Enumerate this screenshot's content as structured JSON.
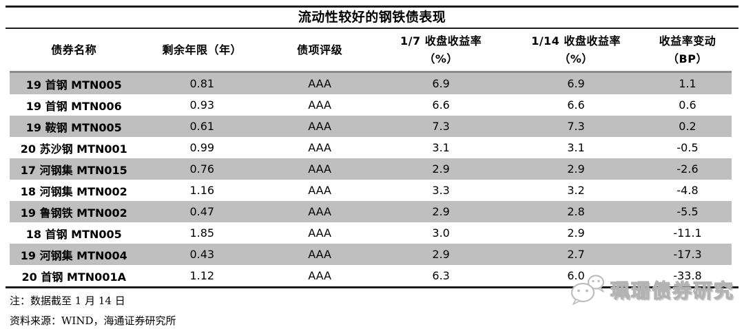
{
  "title": "流动性较好的钢铁债表现",
  "table": {
    "headers": [
      {
        "line1": "债券名称",
        "line2": ""
      },
      {
        "line1": "剩余年限（年）",
        "line2": ""
      },
      {
        "line1": "债项评级",
        "line2": ""
      },
      {
        "line1": "1/7 收盘收益率",
        "line2": "（%）"
      },
      {
        "line1": "1/14 收盘收益率",
        "line2": "（%）"
      },
      {
        "line1": "收益率变动",
        "line2": "（BP）"
      }
    ],
    "rows": [
      {
        "name": "19 首钢 MTN005",
        "years": "0.81",
        "rating": "AAA",
        "yield_0107": "6.9",
        "yield_0114": "6.9",
        "change_bp": "1.1"
      },
      {
        "name": "19 首钢 MTN006",
        "years": "0.93",
        "rating": "AAA",
        "yield_0107": "6.6",
        "yield_0114": "6.6",
        "change_bp": "0.6"
      },
      {
        "name": "19 鞍钢 MTN005",
        "years": "0.61",
        "rating": "AAA",
        "yield_0107": "7.3",
        "yield_0114": "7.3",
        "change_bp": "0.2"
      },
      {
        "name": "20 苏沙钢 MTN001",
        "years": "0.99",
        "rating": "AAA",
        "yield_0107": "3.1",
        "yield_0114": "3.1",
        "change_bp": "-0.5"
      },
      {
        "name": "17 河钢集 MTN015",
        "years": "0.76",
        "rating": "AAA",
        "yield_0107": "2.9",
        "yield_0114": "2.9",
        "change_bp": "-2.6"
      },
      {
        "name": "18 河钢集 MTN002",
        "years": "1.16",
        "rating": "AAA",
        "yield_0107": "3.3",
        "yield_0114": "3.2",
        "change_bp": "-4.8"
      },
      {
        "name": "19 鲁钢铁 MTN002",
        "years": "0.47",
        "rating": "AAA",
        "yield_0107": "2.9",
        "yield_0114": "2.8",
        "change_bp": "-5.5"
      },
      {
        "name": "18 首钢 MTN005",
        "years": "1.85",
        "rating": "AAA",
        "yield_0107": "3.0",
        "yield_0114": "2.9",
        "change_bp": "-11.1"
      },
      {
        "name": "19 河钢集 MTN004",
        "years": "0.43",
        "rating": "AAA",
        "yield_0107": "2.9",
        "yield_0114": "2.7",
        "change_bp": "-17.3"
      },
      {
        "name": "20 首钢 MTN001A",
        "years": "1.12",
        "rating": "AAA",
        "yield_0107": "6.3",
        "yield_0114": "6.0",
        "change_bp": "-33.8"
      }
    ]
  },
  "notes": [
    "注：数据截至 1 月 14 日",
    "资料来源：WIND，海通证券研究所"
  ],
  "watermark": {
    "icon": "wechat-icon",
    "text": "珮珊债券研究"
  },
  "colors": {
    "rule": "#1a1a1a",
    "row_shade": "#bfbfbf",
    "header_divider": "#8c8c8c",
    "text": "#000000",
    "watermark_gray": "#c2c2c2"
  }
}
